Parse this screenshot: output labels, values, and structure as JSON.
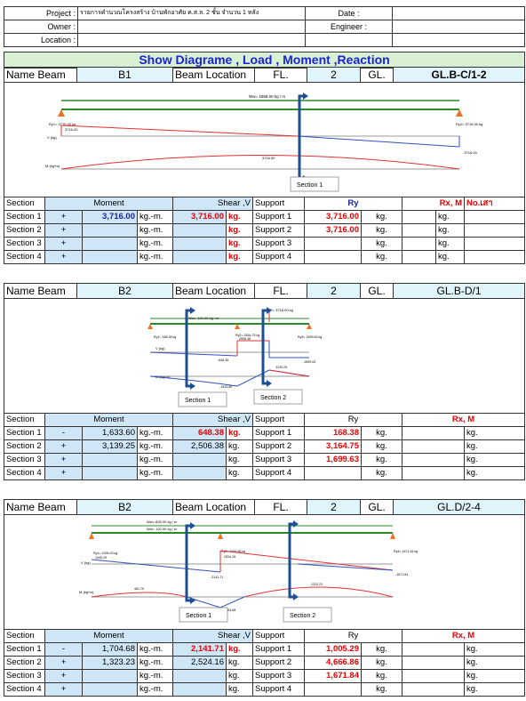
{
  "header": {
    "project_label": "Project :",
    "project_value": "รายการคำนวณโครงสร้าง บ้านพักอาศัย  ค.ส.ล. 2 ชั้น จำนวน 1 หลัง",
    "date_label": "Date :",
    "owner_label": "Owner :",
    "engineer_label": "Engineer :",
    "location_label": "Location :"
  },
  "title": "Show Diagrame , Load , Moment ,Reaction",
  "labels": {
    "name_beam": "Name Beam",
    "beam_location": "Beam Location",
    "fl": "FL.",
    "gl": "GL.",
    "section": "Section",
    "moment": "Moment",
    "shear": "Shear ,V",
    "support": "Support",
    "ry": "Ry",
    "rxm": "Rx, M",
    "no_col": "No.เสา",
    "kgm": "kg.-m.",
    "kg": "kg.",
    "section_1": "Section 1",
    "section_2": "Section 2"
  },
  "beams": [
    {
      "name": "B1",
      "floor": "2",
      "gl": "GL.B-C/1-2",
      "rows": [
        {
          "section": "Section 1",
          "sign": "+",
          "moment": "3,716.00",
          "shear": "3,716.00",
          "support": "Support 1",
          "ry": "3,716.00"
        },
        {
          "section": "Section 2",
          "sign": "+",
          "moment": "",
          "shear": "",
          "support": "Support 2",
          "ry": "3,716.00"
        },
        {
          "section": "Section 3",
          "sign": "+",
          "moment": "",
          "shear": "",
          "support": "Support 3",
          "ry": ""
        },
        {
          "section": "Section 4",
          "sign": "+",
          "moment": "",
          "shear": "",
          "support": "Support 4",
          "ry": ""
        }
      ],
      "diagram_text": {
        "w": "Ww= 1858.00 kg / m",
        "ry1": "Ry1= 3716.00 kg",
        "ry2": "Ry2= 3716.00 kg",
        "v1": "3716.00",
        "v2": "-3716.00",
        "m": "3716.00",
        "vlabel": "V (kg)",
        "mlabel": "M (kg*m)"
      }
    },
    {
      "name": "B2",
      "floor": "2",
      "gl": "GL.B-D/1",
      "rows": [
        {
          "section": "Section 1",
          "sign": "-",
          "moment": "1,633.60",
          "shear": "648.38",
          "support": "Support 1",
          "ry": "168.38"
        },
        {
          "section": "Section 2",
          "sign": "+",
          "moment": "3,139.25",
          "shear": "2,506.38",
          "support": "Support 2",
          "ry": "3,164.75"
        },
        {
          "section": "Section 3",
          "sign": "+",
          "moment": "",
          "shear": "",
          "support": "Support 3",
          "ry": "1,699.63"
        },
        {
          "section": "Section 4",
          "sign": "+",
          "moment": "",
          "shear": "",
          "support": "Support 4",
          "ry": ""
        }
      ],
      "diagram_text": {
        "p": "P= 3718.00 kg",
        "w": "Ww= 120.00 kg / m",
        "ry1": "Ry1= 168.38 kg",
        "ry2": "Ry2= 3164.75 kg",
        "ry3": "Ry3= 1699.63 kg",
        "v1": "2506.38",
        "v2": "-648.38",
        "v3": "-1699.63",
        "m1": "3139.25",
        "m2": "-1633.60",
        "vlabel": "V (kg)",
        "mlabel": "M (kg*m)"
      }
    },
    {
      "name": "B2",
      "floor": "2",
      "gl": "GL.D/2-4",
      "rows": [
        {
          "section": "Section 1",
          "sign": "-",
          "moment": "1,704.68",
          "shear": "2,141.71",
          "support": "Support 1",
          "ry": "1,005.29"
        },
        {
          "section": "Section 2",
          "sign": "+",
          "moment": "1,323.23",
          "shear": "2,524.16",
          "support": "Support 2",
          "ry": "4,666.86"
        },
        {
          "section": "Section 3",
          "sign": "+",
          "moment": "",
          "shear": "",
          "support": "Support 3",
          "ry": "1,671.84"
        },
        {
          "section": "Section 4",
          "sign": "+",
          "moment": "",
          "shear": "",
          "support": "Support 4",
          "ry": ""
        }
      ],
      "diagram_text": {
        "w1": "Ww= 828.00 kg / m",
        "w2": "Ww= 120.00 kg / m",
        "ry1": "Ry1= 1005.29 kg",
        "ry2": "Ry2= 4666.86 kg",
        "ry3": "Ry3= 1671.84 kg",
        "v1": "1005.29",
        "v2": "2524.16",
        "v3": "-2141.71",
        "v4": "-1671.84",
        "m1": "461.70",
        "m2": "1323.23",
        "m3": "-1704.68",
        "vlabel": "V (kg)",
        "mlabel": "M (kg*m)"
      }
    }
  ]
}
